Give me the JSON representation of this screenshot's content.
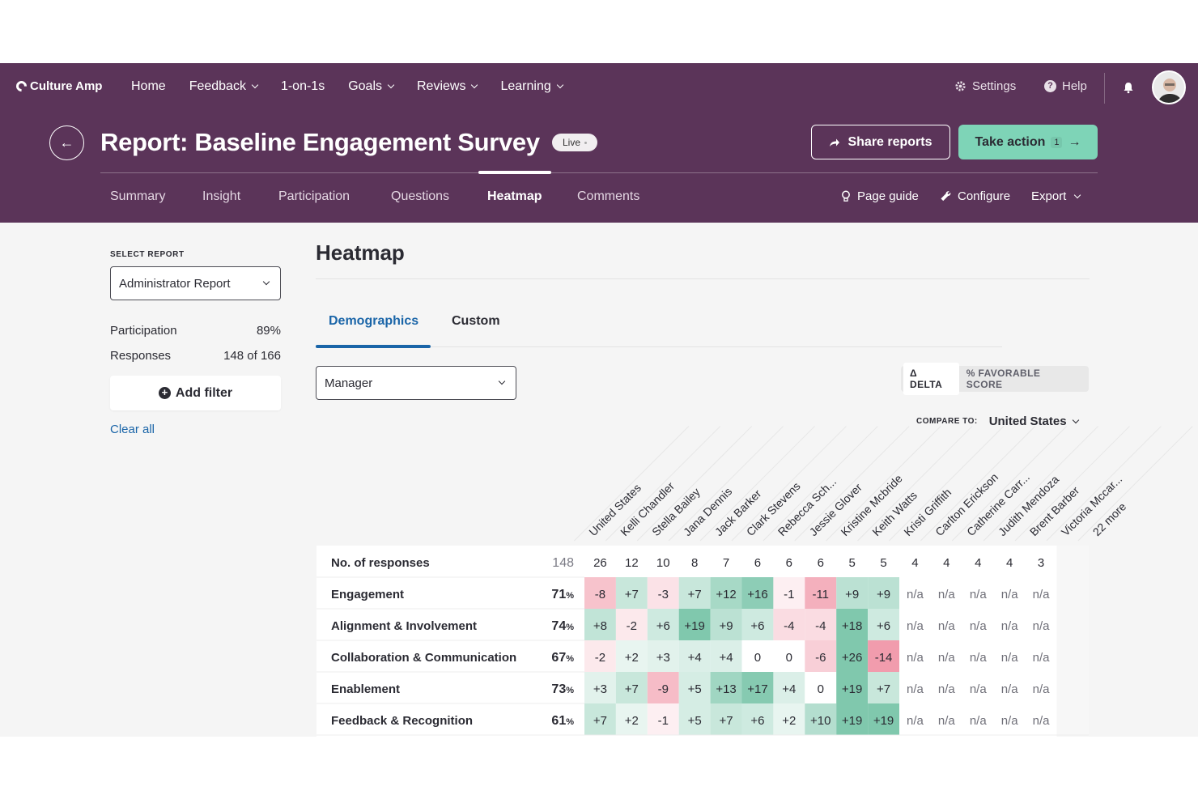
{
  "app": {
    "logo": "Culture Amp",
    "nav": [
      {
        "label": "Home",
        "has_menu": false
      },
      {
        "label": "Feedback",
        "has_menu": true
      },
      {
        "label": "1-on-1s",
        "has_menu": false
      },
      {
        "label": "Goals",
        "has_menu": true
      },
      {
        "label": "Reviews",
        "has_menu": true
      },
      {
        "label": "Learning",
        "has_menu": true
      }
    ],
    "settings": "Settings",
    "help": "Help"
  },
  "report": {
    "title": "Report: Baseline Engagement Survey",
    "status": "Live",
    "share_label": "Share reports",
    "action_label": "Take action",
    "action_count": "1",
    "tabs": [
      "Summary",
      "Insight",
      "Participation",
      "Questions",
      "Heatmap",
      "Comments"
    ],
    "active_tab": "Heatmap",
    "page_guide": "Page guide",
    "configure": "Configure",
    "export": "Export"
  },
  "sidebar": {
    "select_label": "SELECT REPORT",
    "selected_report": "Administrator Report",
    "participation_label": "Participation",
    "participation_value": "89%",
    "responses_label": "Responses",
    "responses_value": "148 of 166",
    "add_filter": "Add filter",
    "clear_all": "Clear all"
  },
  "main": {
    "heading": "Heatmap",
    "tabs": [
      "Demographics",
      "Custom"
    ],
    "group_by": "Manager",
    "mode_delta": "Δ DELTA",
    "mode_favorable": "% FAVORABLE SCORE",
    "compare_label": "COMPARE TO:",
    "compare_value": "United States"
  },
  "heatmap": {
    "columns": [
      "United States",
      "Kelli Chandler",
      "Stella Bailey",
      "Jana Dennis",
      "Jack Barker",
      "Clark Stevens",
      "Rebecca Sch...",
      "Jessie Glover",
      "Kristine Mcbride",
      "Keith Watts",
      "Kristi Griffith",
      "Carlton Erickson",
      "Catherine Carr...",
      "Judith Mendoza",
      "Brent Barber",
      "Victoria Mccar...",
      "22 more"
    ],
    "rows": [
      {
        "label": "No. of responses",
        "overall": "148",
        "cells": [
          "26",
          "12",
          "10",
          "8",
          "7",
          "6",
          "6",
          "6",
          "5",
          "5",
          "4",
          "4",
          "4",
          "4",
          "3"
        ]
      },
      {
        "label": "Engagement",
        "overall": "71",
        "cells": [
          "-8",
          "+7",
          "-3",
          "+7",
          "+12",
          "+16",
          "-1",
          "-11",
          "+9",
          "+9",
          "n/a",
          "n/a",
          "n/a",
          "n/a",
          "n/a"
        ]
      },
      {
        "label": "Alignment & Involvement",
        "overall": "74",
        "cells": [
          "+8",
          "-2",
          "+6",
          "+19",
          "+9",
          "+6",
          "-4",
          "-4",
          "+18",
          "+6",
          "n/a",
          "n/a",
          "n/a",
          "n/a",
          "n/a"
        ]
      },
      {
        "label": "Collaboration & Communication",
        "overall": "67",
        "cells": [
          "-2",
          "+2",
          "+3",
          "+4",
          "+4",
          "0",
          "0",
          "-6",
          "+26",
          "-14",
          "n/a",
          "n/a",
          "n/a",
          "n/a",
          "n/a"
        ]
      },
      {
        "label": "Enablement",
        "overall": "73",
        "cells": [
          "+3",
          "+7",
          "-9",
          "+5",
          "+13",
          "+17",
          "+4",
          "0",
          "+19",
          "+7",
          "n/a",
          "n/a",
          "n/a",
          "n/a",
          "n/a"
        ]
      },
      {
        "label": "Feedback & Recognition",
        "overall": "61",
        "cells": [
          "+7",
          "+2",
          "-1",
          "+5",
          "+7",
          "+6",
          "+2",
          "+10",
          "+19",
          "+19",
          "n/a",
          "n/a",
          "n/a",
          "n/a",
          "n/a"
        ]
      }
    ],
    "colors": {
      "positive": "#5cb896",
      "negative": "#e9607a",
      "neutral": "#ffffff"
    }
  }
}
